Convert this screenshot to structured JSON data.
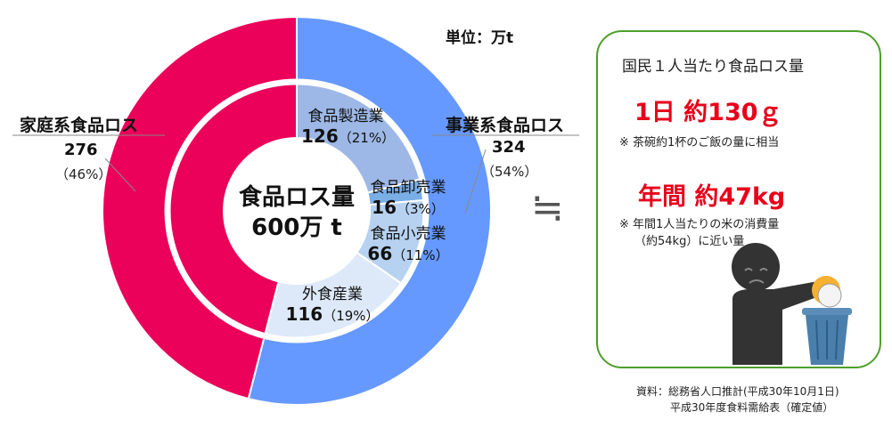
{
  "unit_label": "単位：万t",
  "center": {
    "line1": "食品ロス量",
    "line2": "600万 t"
  },
  "household": {
    "title": "家庭系食品ロス",
    "value": "276",
    "pct": "（46%）"
  },
  "business": {
    "title": "事業系食品ロス",
    "value": "324",
    "pct": "（54%）"
  },
  "segments": {
    "manufacturing": {
      "name": "食品製造業",
      "value": "126",
      "pct": "（21%）"
    },
    "wholesale": {
      "name": "食品卸売業",
      "value": "16",
      "pct": "（3%）"
    },
    "retail": {
      "name": "食品小売業",
      "value": "66",
      "pct": "（11%）"
    },
    "restaurant": {
      "name": "外食産業",
      "value": "116",
      "pct": "（19%）"
    }
  },
  "approx_symbol": "≒",
  "per_capita": {
    "title": "国民１人当たり食品ロス量",
    "daily": "1日 約130ｇ",
    "daily_note": "※ 茶碗約1杯のご飯の量に相当",
    "yearly": "年間 約47kg",
    "yearly_note_1": "※ 年間1人当たりの米の消費量",
    "yearly_note_2": "（約54kg）に近い量"
  },
  "source_1": "資料：総務省人口推計(平成30年10月1日)",
  "source_2": "平成30年度食料需給表（確定値）",
  "colors": {
    "household": "#eb005a",
    "business": "#6699ff",
    "manufacturing": "#9db8e6",
    "wholesale": "#7aaee6",
    "retail": "#b7d2f1",
    "restaurant": "#dde9f8",
    "box_border": "#4d9f2a",
    "accent_red": "#e8001b"
  },
  "chart_data": {
    "type": "pie",
    "title": "食品ロス量 600万 t",
    "unit": "万t",
    "outer_ring": [
      {
        "name": "事業系食品ロス",
        "value": 324,
        "pct": 54
      },
      {
        "name": "家庭系食品ロス",
        "value": 276,
        "pct": 46
      }
    ],
    "inner_ring": [
      {
        "name": "食品製造業",
        "value": 126,
        "pct": 21
      },
      {
        "name": "食品卸売業",
        "value": 16,
        "pct": 3
      },
      {
        "name": "食品小売業",
        "value": 66,
        "pct": 11
      },
      {
        "name": "外食産業",
        "value": 116,
        "pct": 19
      },
      {
        "name": "家庭系食品ロス",
        "value": 276,
        "pct": 46
      }
    ]
  }
}
